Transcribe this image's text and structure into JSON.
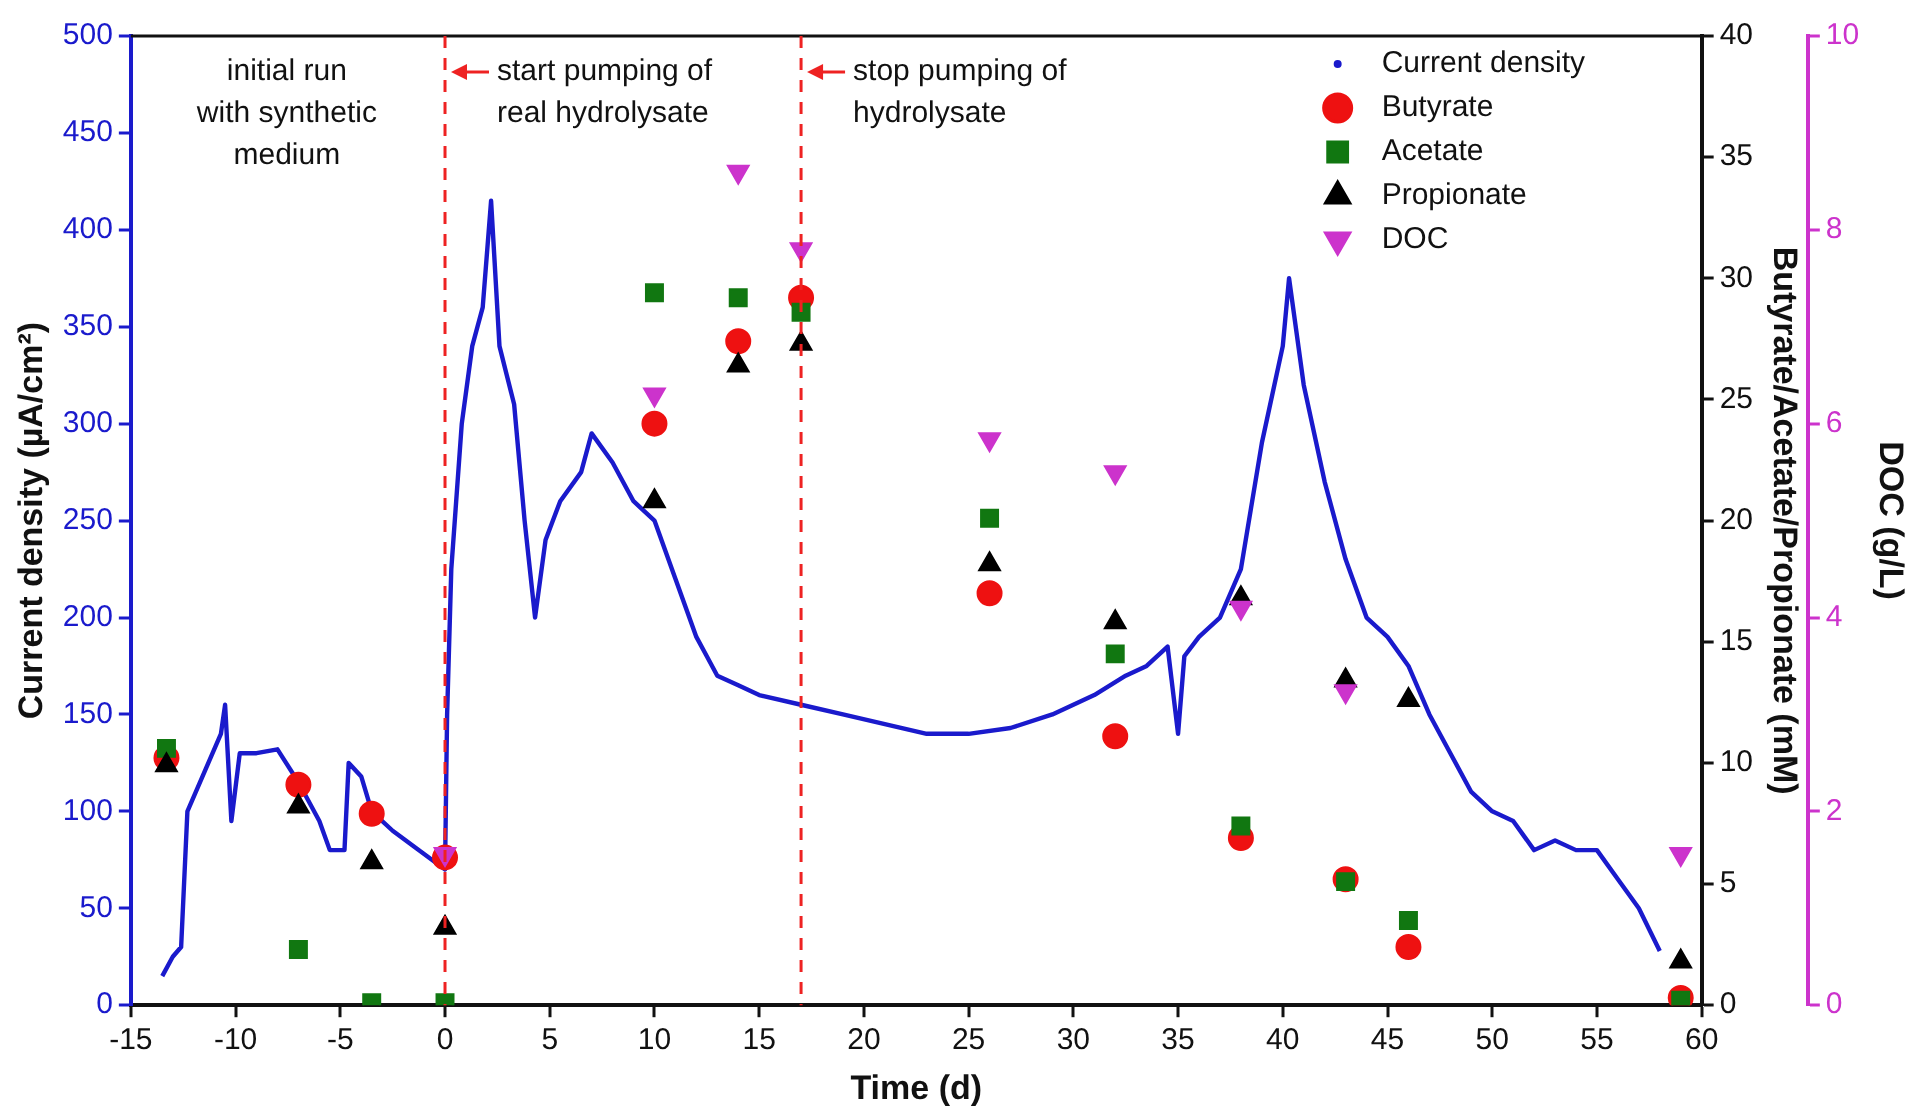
{
  "chart_data": {
    "type": "scatter",
    "xlabel": "Time (d)",
    "ylabel": "Current density (µA/cm²)",
    "y2label": "Butyrate/Acetate/Propionate (mM)",
    "y3label": "DOC (g/L)",
    "xlim": [
      -15,
      60
    ],
    "xticks": [
      -15,
      -10,
      -5,
      0,
      5,
      10,
      15,
      20,
      25,
      30,
      35,
      40,
      45,
      50,
      55,
      60
    ],
    "ylim": [
      0,
      500
    ],
    "yticks": [
      0,
      50,
      100,
      150,
      200,
      250,
      300,
      350,
      400,
      450,
      500
    ],
    "y2lim": [
      0,
      40
    ],
    "y2ticks": [
      0,
      5,
      10,
      15,
      20,
      25,
      30,
      35,
      40
    ],
    "y3lim": [
      0,
      10
    ],
    "y3ticks": [
      0,
      2,
      4,
      6,
      8,
      10
    ],
    "legend": "top right",
    "grid": false,
    "annotations": [
      "initial run\nwith synthetic\nmedium"
    ],
    "ref_lines": [
      {
        "axis": "x",
        "value": 0,
        "label": "start pumping of\nreal hydrolysate",
        "color": "#ee2222",
        "line_style": "dashed"
      },
      {
        "axis": "x",
        "value": 17,
        "label": "stop pumping of\nhydrolysate",
        "color": "#ee2222",
        "line_style": "dashed"
      }
    ],
    "series": [
      {
        "name": "Current density",
        "type": "line",
        "marker": "none",
        "color": "#1a1acc",
        "x": [
          -13.5,
          -13,
          -12.6,
          -12.3,
          -11.5,
          -10.7,
          -10.5,
          -10.2,
          -9.8,
          -9,
          -8,
          -7,
          -6,
          -5.5,
          -4.8,
          -4.6,
          -4,
          -3.5,
          -2.5,
          -1,
          0,
          0.1,
          0.3,
          0.8,
          1.3,
          1.8,
          2.2,
          2.6,
          3.3,
          3.8,
          4.3,
          4.8,
          5.5,
          6.5,
          7,
          8,
          9,
          10,
          11,
          12,
          12.5,
          13,
          14,
          15,
          17,
          19,
          21,
          23,
          25,
          27,
          29,
          31,
          32.5,
          33.5,
          34.5,
          35,
          35.3,
          36,
          37,
          38,
          39,
          40,
          40.3,
          41,
          42,
          43,
          44,
          45,
          46,
          47,
          48,
          49,
          50,
          51,
          52,
          53,
          54,
          55,
          56,
          57,
          58
        ],
        "values": [
          15,
          25,
          30,
          100,
          120,
          140,
          155,
          95,
          130,
          130,
          132,
          115,
          95,
          80,
          80,
          125,
          118,
          100,
          90,
          78,
          70,
          150,
          225,
          300,
          340,
          360,
          415,
          340,
          310,
          250,
          200,
          240,
          260,
          275,
          295,
          280,
          260,
          250,
          220,
          190,
          180,
          170,
          165,
          160,
          155,
          150,
          145,
          140,
          140,
          143,
          150,
          160,
          170,
          175,
          185,
          140,
          180,
          190,
          200,
          225,
          290,
          340,
          375,
          320,
          270,
          230,
          200,
          190,
          175,
          150,
          130,
          110,
          100,
          95,
          80,
          85,
          80,
          80,
          65,
          50,
          28
        ]
      },
      {
        "name": "Butyrate",
        "type": "scatter",
        "axis": "y2",
        "marker": "circle",
        "color": "#ee1111",
        "x": [
          -13.3,
          -7,
          -3.5,
          0,
          10,
          14,
          17,
          26,
          32,
          38,
          43,
          46,
          59
        ],
        "values": [
          10.2,
          9.1,
          7.9,
          6.1,
          24.0,
          27.4,
          29.2,
          17.0,
          11.1,
          6.9,
          5.2,
          2.4,
          0.3
        ]
      },
      {
        "name": "Acetate",
        "type": "scatter",
        "axis": "y2",
        "marker": "square",
        "color": "#117711",
        "x": [
          -13.3,
          -7,
          -3.5,
          0,
          10,
          14,
          17,
          26,
          32,
          38,
          43,
          46,
          59
        ],
        "values": [
          10.6,
          2.3,
          0.1,
          0.1,
          29.4,
          29.2,
          28.6,
          20.1,
          14.5,
          7.4,
          5.1,
          3.5,
          0.2
        ]
      },
      {
        "name": "Propionate",
        "type": "scatter",
        "axis": "y2",
        "marker": "triangle",
        "color": "#000000",
        "x": [
          -13.3,
          -7,
          -3.5,
          0,
          10,
          14,
          17,
          26,
          32,
          38,
          43,
          46,
          59
        ],
        "values": [
          9.9,
          8.2,
          5.9,
          3.2,
          20.8,
          26.4,
          27.3,
          18.2,
          15.8,
          16.8,
          13.4,
          12.6,
          1.8
        ]
      },
      {
        "name": "DOC",
        "type": "scatter",
        "axis": "y3",
        "marker": "triangle-down",
        "color": "#cc33cc",
        "x": [
          0,
          10,
          14,
          17,
          26,
          32,
          38,
          43,
          59
        ],
        "values": [
          1.56,
          6.3,
          8.6,
          7.8,
          5.84,
          5.5,
          4.1,
          3.24,
          1.56
        ]
      }
    ]
  }
}
